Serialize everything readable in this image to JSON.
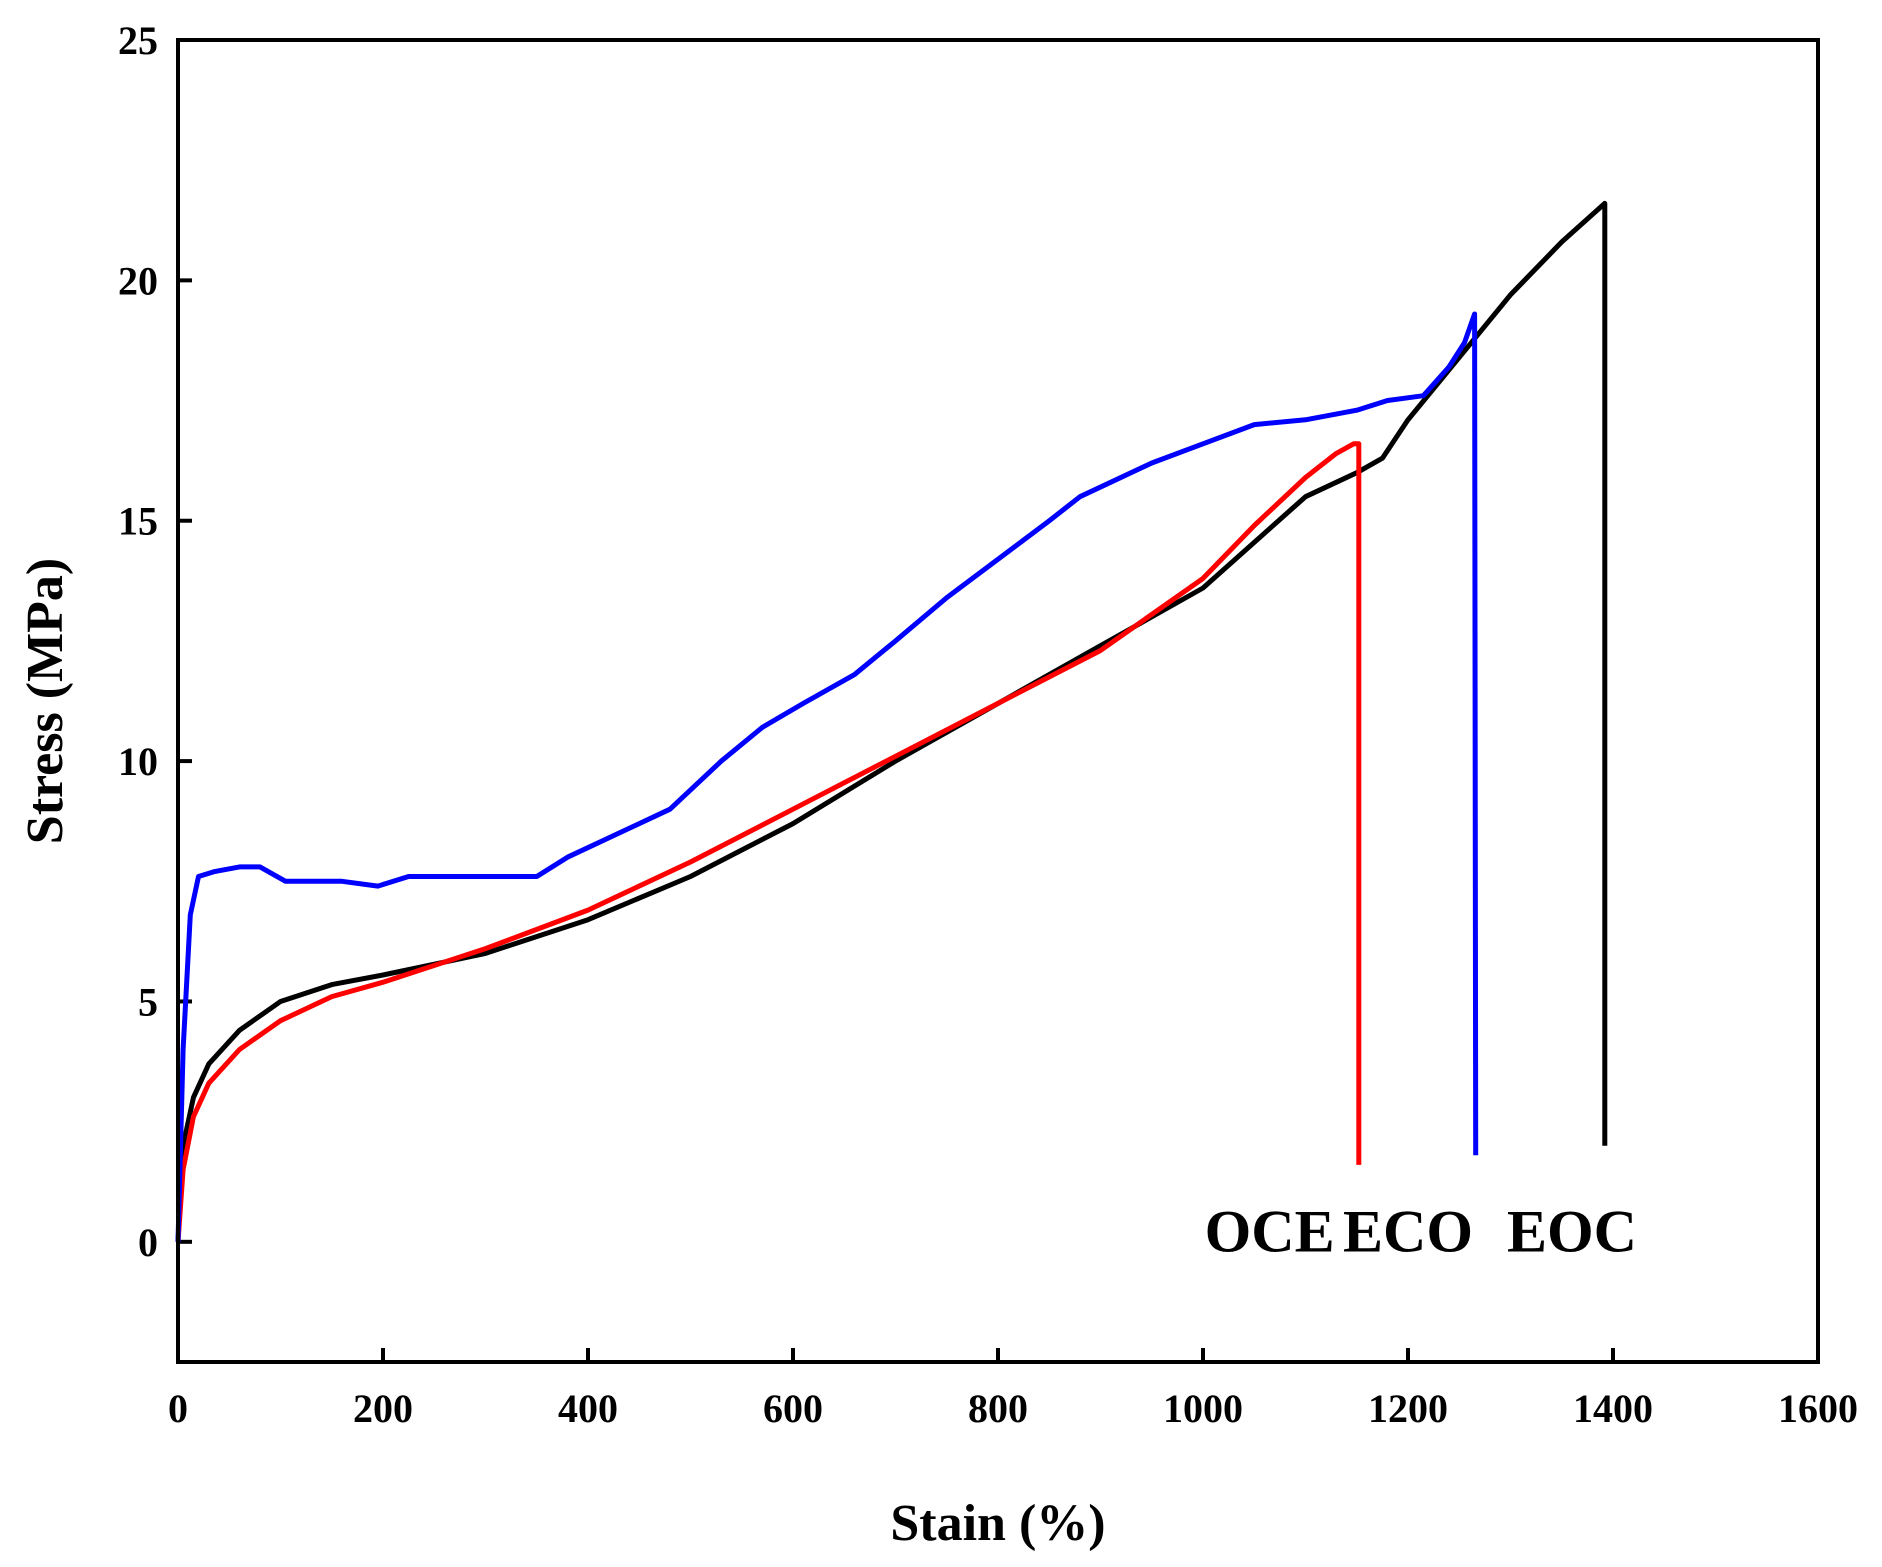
{
  "chart_data": {
    "type": "line",
    "title": "",
    "xlabel": "Stain (%)",
    "ylabel": "Stress (MPa)",
    "xlim": [
      0,
      1600
    ],
    "ylim": [
      -2.5,
      25
    ],
    "xticks": [
      0,
      200,
      400,
      600,
      800,
      1000,
      1200,
      1400,
      1600
    ],
    "yticks": [
      0,
      5,
      10,
      15,
      20,
      25
    ],
    "grid": false,
    "legend": "none",
    "series": [
      {
        "name": "EOC",
        "color": "#000000",
        "x": [
          0,
          5,
          15,
          30,
          60,
          100,
          150,
          200,
          300,
          400,
          500,
          600,
          700,
          800,
          900,
          1000,
          1100,
          1150,
          1175,
          1200,
          1250,
          1300,
          1350,
          1392,
          1392
        ],
        "y": [
          0,
          2.0,
          3.0,
          3.7,
          4.4,
          5.0,
          5.35,
          5.55,
          6.0,
          6.7,
          7.6,
          8.7,
          10.0,
          11.2,
          12.4,
          13.6,
          15.5,
          16.0,
          16.3,
          17.1,
          18.4,
          19.7,
          20.8,
          21.6,
          2.0
        ]
      },
      {
        "name": "OCE",
        "color": "#ff0000",
        "x": [
          0,
          5,
          15,
          30,
          60,
          100,
          150,
          200,
          300,
          400,
          500,
          600,
          700,
          800,
          900,
          1000,
          1050,
          1100,
          1130,
          1147,
          1152,
          1152
        ],
        "y": [
          0,
          1.5,
          2.6,
          3.3,
          4.0,
          4.6,
          5.1,
          5.4,
          6.1,
          6.9,
          7.9,
          9.0,
          10.1,
          11.2,
          12.3,
          13.8,
          14.9,
          15.9,
          16.4,
          16.6,
          16.6,
          1.6
        ]
      },
      {
        "name": "ECO",
        "color": "#0000ff",
        "x": [
          0,
          5,
          12,
          20,
          35,
          60,
          80,
          105,
          130,
          160,
          195,
          225,
          260,
          300,
          350,
          380,
          420,
          480,
          530,
          570,
          610,
          660,
          700,
          750,
          800,
          850,
          880,
          950,
          1000,
          1050,
          1100,
          1150,
          1180,
          1215,
          1240,
          1255,
          1265,
          1266
        ],
        "y": [
          0,
          4.0,
          6.8,
          7.6,
          7.7,
          7.8,
          7.8,
          7.5,
          7.5,
          7.5,
          7.4,
          7.6,
          7.6,
          7.6,
          7.6,
          8.0,
          8.4,
          9.0,
          10.0,
          10.7,
          11.2,
          11.8,
          12.5,
          13.4,
          14.2,
          15.0,
          15.5,
          16.2,
          16.6,
          17.0,
          17.1,
          17.3,
          17.5,
          17.6,
          18.2,
          18.7,
          19.3,
          1.8
        ]
      }
    ],
    "annotations": [
      {
        "text": "OCE",
        "x": 1065,
        "y": -0.2
      },
      {
        "text": "ECO",
        "x": 1200,
        "y": -0.2
      },
      {
        "text": "EOC",
        "x": 1360,
        "y": -0.2
      }
    ]
  }
}
